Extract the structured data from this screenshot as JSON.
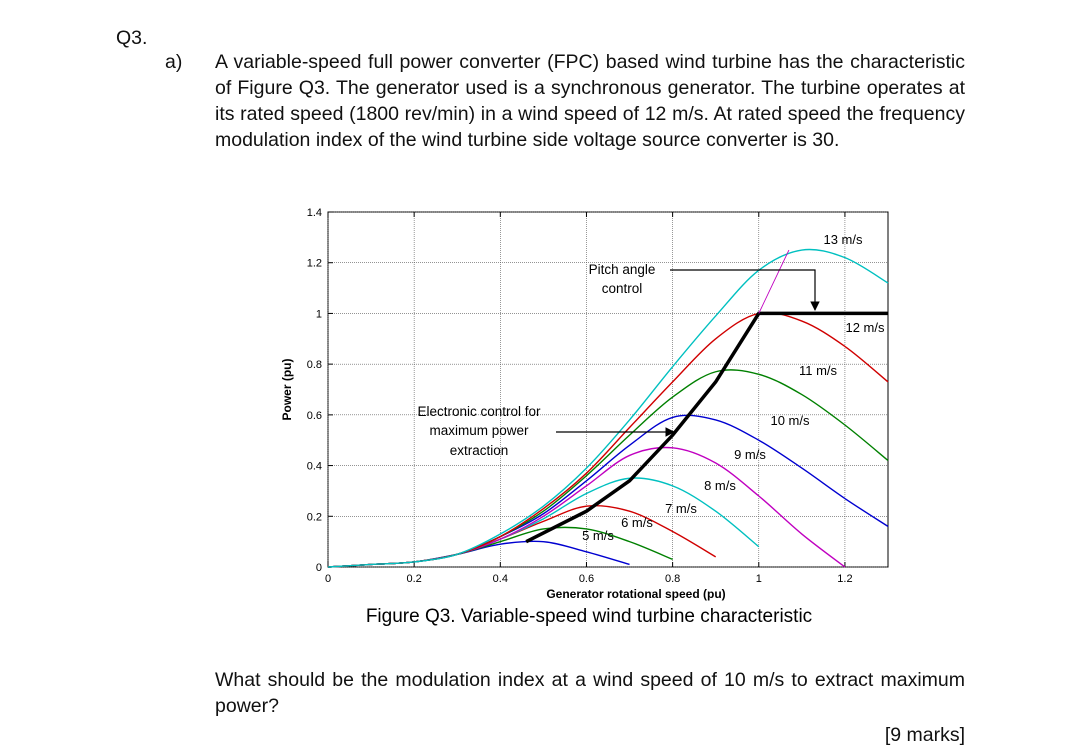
{
  "question": "Q3.",
  "part": "a)",
  "intro": "A variable-speed full power converter (FPC) based wind turbine has the characteristic of Figure Q3. The generator used is a synchronous generator. The turbine operates at its rated speed (1800 rev/min) in a wind speed of 12 m/s. At rated speed the frequency modulation index of the wind turbine side voltage source converter is 30.",
  "chart_data": {
    "type": "line",
    "xlabel": "Generator rotational speed (pu)",
    "ylabel": "Power (pu)",
    "xlim": [
      0,
      1.3
    ],
    "ylim": [
      0,
      1.4
    ],
    "xticks": [
      0,
      0.2,
      0.4,
      0.6,
      0.8,
      1,
      1.2
    ],
    "yticks": [
      0,
      0.2,
      0.4,
      0.6,
      0.8,
      1,
      1.2,
      1.4
    ],
    "grid": true,
    "x": [
      0,
      0.1,
      0.2,
      0.3,
      0.4,
      0.5,
      0.6,
      0.7,
      0.8,
      0.9,
      1.0,
      1.1,
      1.2,
      1.3
    ],
    "series": [
      {
        "name": "5 m/s",
        "color": "#0000d0",
        "values": [
          0,
          0.01,
          0.02,
          0.05,
          0.09,
          0.1,
          0.06,
          0.01,
          null,
          null,
          null,
          null,
          null,
          null
        ]
      },
      {
        "name": "6 m/s",
        "color": "#008000",
        "values": [
          0,
          0.01,
          0.02,
          0.05,
          0.1,
          0.15,
          0.15,
          0.1,
          0.03,
          null,
          null,
          null,
          null,
          null
        ]
      },
      {
        "name": "7 m/s",
        "color": "#d00000",
        "values": [
          0,
          0.01,
          0.02,
          0.05,
          0.11,
          0.18,
          0.24,
          0.22,
          0.14,
          0.04,
          null,
          null,
          null,
          null
        ]
      },
      {
        "name": "8 m/s",
        "color": "#00c0c0",
        "values": [
          0,
          0.01,
          0.02,
          0.05,
          0.11,
          0.19,
          0.29,
          0.35,
          0.32,
          0.22,
          0.08,
          null,
          null,
          null
        ]
      },
      {
        "name": "9 m/s",
        "color": "#c000c0",
        "values": [
          0,
          0.01,
          0.02,
          0.05,
          0.11,
          0.2,
          0.32,
          0.44,
          0.47,
          0.41,
          0.28,
          0.13,
          0.0,
          null
        ]
      },
      {
        "name": "10 m/s",
        "color": "#0000d0",
        "values": [
          0,
          0.01,
          0.02,
          0.05,
          0.12,
          0.21,
          0.34,
          0.48,
          0.59,
          0.58,
          0.5,
          0.39,
          0.27,
          0.16
        ]
      },
      {
        "name": "11 m/s",
        "color": "#008000",
        "values": [
          0,
          0.01,
          0.02,
          0.05,
          0.12,
          0.22,
          0.36,
          0.52,
          0.67,
          0.77,
          0.76,
          0.68,
          0.56,
          0.42
        ]
      },
      {
        "name": "12 m/s",
        "color": "#d00000",
        "values": [
          0,
          0.01,
          0.02,
          0.05,
          0.12,
          0.23,
          0.37,
          0.55,
          0.73,
          0.9,
          1.0,
          0.97,
          0.87,
          0.73
        ]
      },
      {
        "name": "13 m/s",
        "color": "#00c0c0",
        "values": [
          0,
          0.01,
          0.02,
          0.05,
          0.13,
          0.24,
          0.39,
          0.58,
          0.79,
          0.99,
          1.17,
          1.25,
          1.22,
          1.12
        ]
      },
      {
        "color": "#000000",
        "x": [
          0.46,
          0.6,
          0.7,
          0.8,
          0.9,
          1.0,
          1.3
        ],
        "values": [
          0.1,
          0.22,
          0.34,
          0.52,
          0.73,
          1.0,
          1.0
        ]
      },
      {
        "color": "#c000c0",
        "x": [
          1.0,
          1.07
        ],
        "values": [
          1.0,
          1.25
        ]
      }
    ],
    "annotations": [
      [
        "Pitch angle",
        "control"
      ],
      [
        "Electronic control for",
        "maximum power",
        "extraction"
      ]
    ]
  },
  "figure_caption": "Figure Q3. Variable-speed wind turbine characteristic",
  "prompt": "What should be the modulation index at a wind speed of 10 m/s to extract maximum power?",
  "marks": "[9 marks]"
}
